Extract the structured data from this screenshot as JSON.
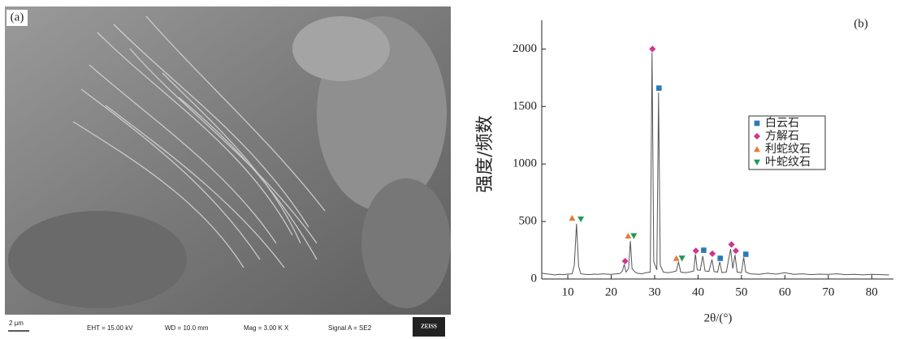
{
  "image_panel": {
    "label": "(a)",
    "scale_bar": "2 µm",
    "info": [
      "EHT = 15.00 kV",
      "WD = 10.0 mm",
      "Mag = 3.00 K X",
      "Signal A = SE2"
    ],
    "logo": "ZEISS"
  },
  "chart_data": {
    "type": "line",
    "label": "(b)",
    "x_label": "2θ/(°)",
    "y_label": "强度/频数",
    "xlim": [
      4,
      85
    ],
    "ylim": [
      0,
      2250
    ],
    "xticks": [
      10,
      20,
      30,
      40,
      50,
      60,
      70,
      80
    ],
    "yticks": [
      0,
      500,
      1000,
      1500,
      2000
    ],
    "color": "#555",
    "x": [
      4,
      5,
      6,
      7,
      8,
      9,
      10,
      11,
      11.5,
      12,
      12.5,
      13,
      14,
      15,
      16,
      17,
      18,
      19,
      20,
      21,
      22,
      22.6,
      23,
      23.4,
      24,
      24.4,
      24.8,
      25.5,
      26,
      27,
      28,
      29,
      29.4,
      29.8,
      30.5,
      30.9,
      31.3,
      32,
      33,
      34,
      35,
      35.5,
      36,
      37,
      38,
      39,
      39.4,
      39.8,
      40.5,
      41.1,
      41.6,
      42.5,
      43.2,
      43.7,
      44.5,
      45,
      45.5,
      46.5,
      47.5,
      48,
      48.5,
      49,
      50,
      50.5,
      51,
      52,
      54,
      56,
      58,
      60,
      62,
      64,
      66,
      68,
      70,
      72,
      74,
      76,
      78,
      80,
      82,
      84
    ],
    "values": [
      50,
      45,
      40,
      35,
      40,
      38,
      42,
      45,
      120,
      480,
      110,
      45,
      40,
      38,
      42,
      40,
      45,
      42,
      40,
      44,
      48,
      70,
      130,
      60,
      90,
      330,
      90,
      60,
      50,
      45,
      55,
      60,
      1980,
      150,
      80,
      1620,
      120,
      60,
      55,
      60,
      70,
      150,
      60,
      55,
      60,
      70,
      220,
      80,
      75,
      200,
      70,
      65,
      170,
      65,
      60,
      150,
      55,
      60,
      260,
      90,
      210,
      60,
      55,
      190,
      60,
      45,
      40,
      50,
      42,
      55,
      40,
      45,
      38,
      42,
      40,
      45,
      38,
      40,
      36,
      40,
      38,
      35
    ],
    "series": [
      {
        "name": "白云石",
        "color": "#2a7ab8",
        "marker": "square",
        "x": [
          31,
          41.3,
          45.1,
          51
        ],
        "values": [
          1660,
          250,
          180,
          215
        ]
      },
      {
        "name": "方解石",
        "color": "#d1358c",
        "marker": "diamond",
        "x": [
          29.5,
          23.2,
          39.5,
          43.3,
          47.7,
          48.7
        ],
        "values": [
          2000,
          155,
          245,
          220,
          300,
          245
        ]
      },
      {
        "name": "利蛇纹石",
        "color": "#e87a3c",
        "marker": "triangle-up",
        "x": [
          11,
          23.9,
          35
        ],
        "values": [
          530,
          375,
          180
        ]
      },
      {
        "name": "叶蛇纹石",
        "color": "#1c9a5c",
        "marker": "triangle-down",
        "x": [
          13,
          25.2,
          36.3
        ],
        "values": [
          520,
          375,
          180
        ]
      }
    ]
  }
}
